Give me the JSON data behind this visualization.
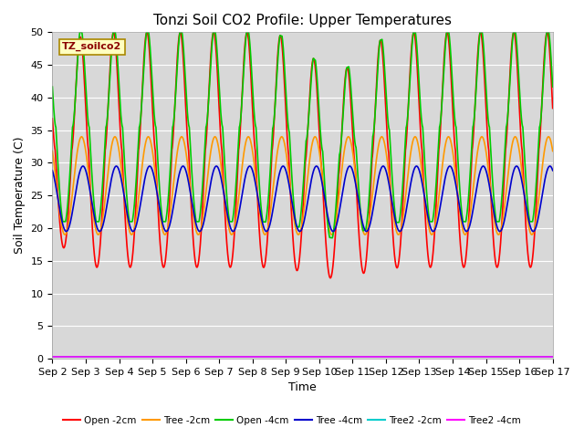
{
  "title": "Tonzi Soil CO2 Profile: Upper Temperatures",
  "ylabel": "Soil Temperature (C)",
  "xlabel": "Time",
  "label_text": "TZ_soilco2",
  "ylim": [
    0,
    50
  ],
  "yticks": [
    0,
    5,
    10,
    15,
    20,
    25,
    30,
    35,
    40,
    45,
    50
  ],
  "n_days": 15,
  "pts_per_day": 240,
  "series": [
    {
      "label": "Open -2cm",
      "color": "#ff0000"
    },
    {
      "label": "Tree -2cm",
      "color": "#ff9900"
    },
    {
      "label": "Open -4cm",
      "color": "#00cc00"
    },
    {
      "label": "Tree -4cm",
      "color": "#0000cc"
    },
    {
      "label": "Tree2 -2cm",
      "color": "#00cccc"
    },
    {
      "label": "Tree2 -4cm",
      "color": "#ff00ff"
    }
  ],
  "plot_bg_color": "#d8d8d8",
  "title_fontsize": 11,
  "axis_fontsize": 9,
  "tick_fontsize": 8
}
